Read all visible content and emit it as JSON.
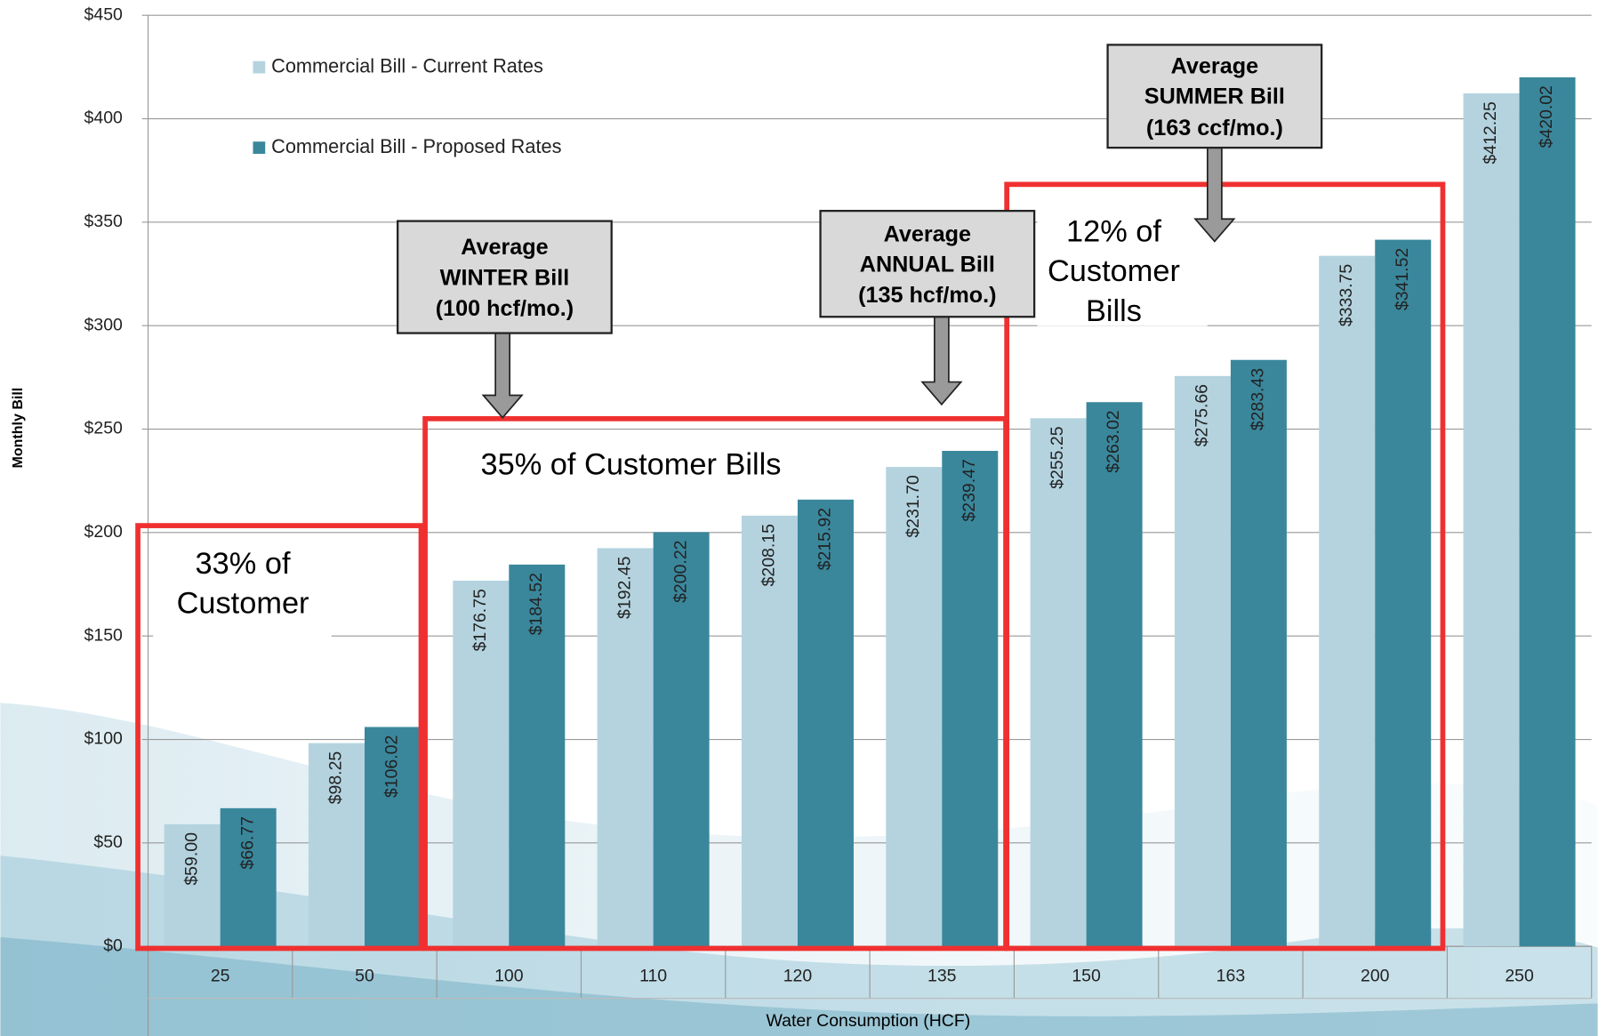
{
  "chart_data": {
    "type": "bar",
    "y_label": "Monthly Bill",
    "x_label": "Water Consumption (HCF)",
    "categories": [
      "25",
      "50",
      "100",
      "110",
      "120",
      "135",
      "150",
      "163",
      "200",
      "250"
    ],
    "series": [
      {
        "name": "Commercial Bill - Current Rates",
        "color": "#b4d3df",
        "values": [
          59.0,
          98.25,
          176.75,
          192.45,
          208.15,
          231.7,
          255.25,
          275.66,
          333.75,
          412.25
        ],
        "value_labels": [
          "$59.00",
          "$98.25",
          "$176.75",
          "$192.45",
          "$208.15",
          "$231.70",
          "$255.25",
          "$275.66",
          "$333.75",
          "$412.25"
        ]
      },
      {
        "name": "Commercial Bill - Proposed Rates",
        "color": "#3a879c",
        "values": [
          66.77,
          106.02,
          184.52,
          200.22,
          215.92,
          239.47,
          263.02,
          283.43,
          341.52,
          420.02
        ],
        "value_labels": [
          "$66.77",
          "$106.02",
          "$184.52",
          "$200.22",
          "$215.92",
          "$239.47",
          "$263.02",
          "$283.43",
          "$341.52",
          "$420.02"
        ]
      }
    ],
    "ylim": [
      0,
      450
    ],
    "yticks": [
      {
        "value": 0,
        "label": "$0"
      },
      {
        "value": 50,
        "label": "$50"
      },
      {
        "value": 100,
        "label": "$100"
      },
      {
        "value": 150,
        "label": "$150"
      },
      {
        "value": 200,
        "label": "$200"
      },
      {
        "value": 250,
        "label": "$250"
      },
      {
        "value": 300,
        "label": "$300"
      },
      {
        "value": 350,
        "label": "$350"
      },
      {
        "value": 400,
        "label": "$400"
      },
      {
        "value": 450,
        "label": "$450"
      }
    ],
    "grid": true,
    "legend": "upper left",
    "callouts": [
      {
        "lines": [
          "Average",
          "WINTER  Bill",
          "(100 hcf/mo.)"
        ]
      },
      {
        "lines": [
          "Average",
          "ANNUAL Bill",
          "(135 hcf/mo.)"
        ]
      },
      {
        "lines": [
          "Average",
          "SUMMER  Bill",
          "(163 ccf/mo.)"
        ]
      }
    ],
    "shares": [
      {
        "lines": [
          "33% of",
          "Customer"
        ]
      },
      {
        "lines": [
          "35% of Customer Bills"
        ]
      },
      {
        "lines": [
          "12% of",
          "Customer",
          "Bills"
        ]
      }
    ]
  }
}
